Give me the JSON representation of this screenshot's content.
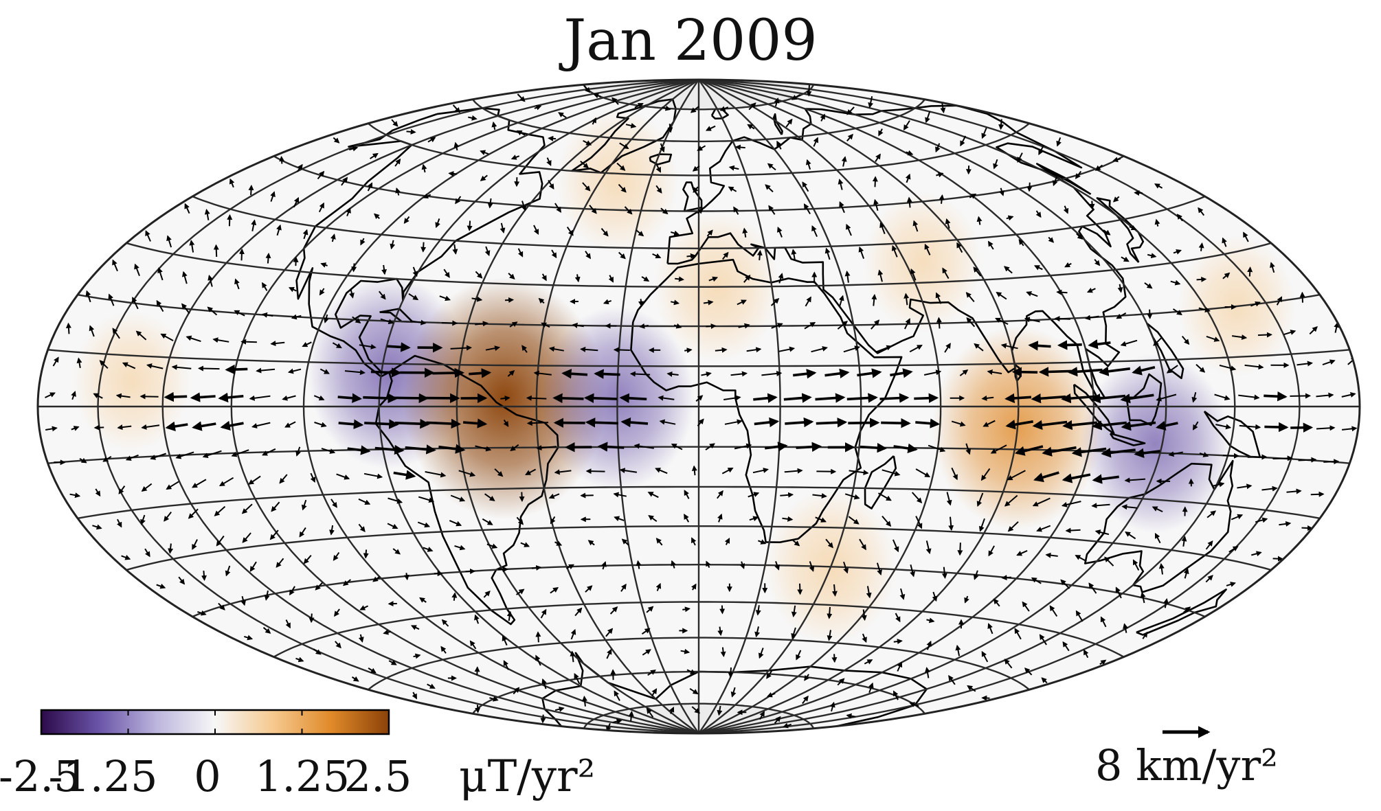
{
  "title": "Jan 2009",
  "colorbar": {
    "ticks": [
      "-2.5",
      "-1.25",
      "0",
      "1.25",
      "2.5"
    ],
    "unit": "μT/yr²",
    "colors": [
      "#2d0a4a",
      "#6a55a8",
      "#bdb6dd",
      "#f7f7f7",
      "#f6c98f",
      "#e08a2a",
      "#8b4208"
    ],
    "range": [
      -2.5,
      2.5
    ]
  },
  "arrow_scale": {
    "label": "8 km/yr²",
    "value": 8
  },
  "map": {
    "projection": "hammer",
    "graticule_spacing_lon_deg": 20,
    "graticule_spacing_lat_deg": 10,
    "fill_color": "#ececec",
    "coastline_color": "#000000"
  },
  "field_blobs": [
    {
      "lon": -78,
      "lat": 8,
      "value": -1.6
    },
    {
      "lon": -48,
      "lat": 2,
      "value": 2.6
    },
    {
      "lon": -20,
      "lat": 2,
      "value": -1.4
    },
    {
      "lon": -33,
      "lat": 58,
      "value": 0.6
    },
    {
      "lon": 5,
      "lat": 30,
      "value": 0.7
    },
    {
      "lon": 65,
      "lat": 35,
      "value": 0.5
    },
    {
      "lon": 80,
      "lat": -5,
      "value": 1.8
    },
    {
      "lon": 118,
      "lat": -8,
      "value": -1.3
    },
    {
      "lon": 40,
      "lat": -40,
      "value": 0.8
    },
    {
      "lon": 150,
      "lat": 20,
      "value": 0.5
    },
    {
      "lon": -150,
      "lat": 5,
      "value": 0.5
    },
    {
      "lon": -120,
      "lat": -30,
      "value": -0.4
    },
    {
      "lon": 140,
      "lat": 50,
      "value": -0.4
    },
    {
      "lon": 100,
      "lat": -55,
      "value": 0.4
    }
  ]
}
